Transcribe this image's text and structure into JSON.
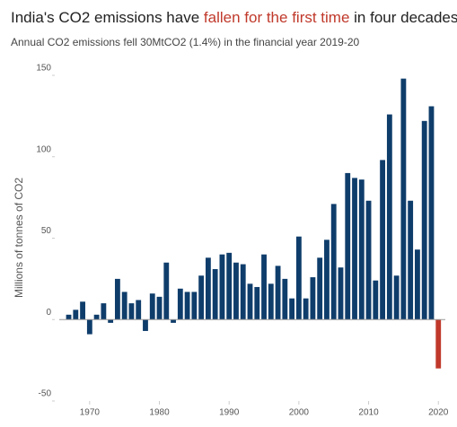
{
  "chart_data": {
    "type": "bar",
    "title_parts": [
      "India's CO2 emissions have ",
      "fallen for the first time",
      " in four decades"
    ],
    "subtitle": "Annual CO2 emissions fell 30MtCO2 (1.4%) in the financial year 2019-20",
    "ylabel": "Millions of tonnes of CO2",
    "x": [
      1967,
      1968,
      1969,
      1970,
      1971,
      1972,
      1973,
      1974,
      1975,
      1976,
      1977,
      1978,
      1979,
      1980,
      1981,
      1982,
      1983,
      1984,
      1985,
      1986,
      1987,
      1988,
      1989,
      1990,
      1991,
      1992,
      1993,
      1994,
      1995,
      1996,
      1997,
      1998,
      1999,
      2000,
      2001,
      2002,
      2003,
      2004,
      2005,
      2006,
      2007,
      2008,
      2009,
      2010,
      2011,
      2012,
      2013,
      2014,
      2015,
      2016,
      2017,
      2018,
      2019,
      2020
    ],
    "values": [
      3,
      6,
      11,
      -9,
      3,
      10,
      -2,
      25,
      17,
      10,
      12,
      -7,
      16,
      14,
      35,
      -2,
      19,
      17,
      17,
      27,
      38,
      31,
      40,
      41,
      35,
      34,
      22,
      20,
      40,
      22,
      33,
      25,
      13,
      51,
      13,
      26,
      38,
      49,
      71,
      32,
      90,
      87,
      86,
      73,
      24,
      98,
      126,
      27,
      148,
      73,
      43,
      122,
      131,
      -30
    ],
    "color": "#0f3d6b",
    "highlight": {
      "x": 2020,
      "color": "#c0392b"
    },
    "xlim": [
      1965,
      2021
    ],
    "xticks": [
      1970,
      1980,
      1990,
      2000,
      2010,
      2020
    ],
    "ylim": [
      -50,
      150
    ],
    "yticks": [
      -50,
      0,
      50,
      100,
      150
    ]
  }
}
